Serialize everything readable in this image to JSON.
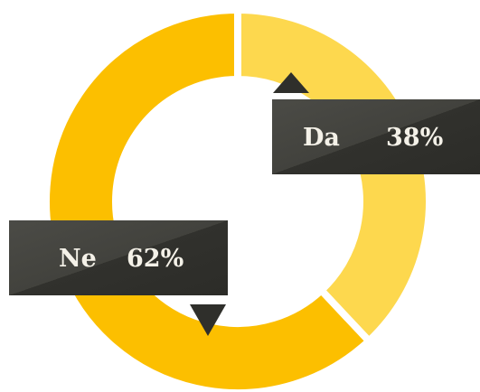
{
  "chart_data": {
    "type": "pie",
    "categories": [
      "Da",
      "Ne"
    ],
    "values": [
      38,
      62
    ],
    "value_labels": [
      "38%",
      "62%"
    ],
    "colors": [
      "#fdd84e",
      "#fcbf00"
    ]
  }
}
